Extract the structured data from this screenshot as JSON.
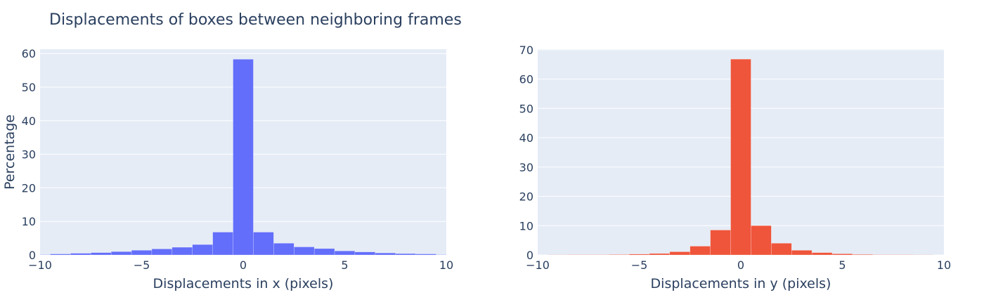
{
  "title": "Displacements of boxes between neighboring frames",
  "chart_data": [
    {
      "type": "histogram",
      "xlabel": "Displacements in x (pixels)",
      "ylabel": "Percentage",
      "color": "#636efa",
      "bins": [
        -10.5,
        -9.5,
        -8.5,
        -7.5,
        -6.5,
        -5.5,
        -4.5,
        -3.5,
        -2.5,
        -1.5,
        -0.5,
        0.5,
        1.5,
        2.5,
        3.5,
        4.5,
        5.5,
        6.5,
        7.5,
        8.5,
        9.5,
        10.5
      ],
      "values": [
        0.1,
        0.3,
        0.5,
        0.7,
        1.0,
        1.4,
        1.8,
        2.3,
        3.1,
        6.8,
        58.3,
        6.8,
        3.5,
        2.4,
        1.9,
        1.2,
        0.9,
        0.6,
        0.4,
        0.3,
        0.1
      ],
      "xlim": [
        -10,
        10
      ],
      "ylim": [
        0,
        61.3
      ],
      "xticks": [
        {
          "value": -10,
          "label": "−10"
        },
        {
          "value": -5,
          "label": "−5"
        },
        0,
        5,
        10
      ],
      "yticks": [
        0,
        10,
        20,
        30,
        40,
        50,
        60
      ],
      "grid": true
    },
    {
      "type": "histogram",
      "xlabel": "Displacements in y (pixels)",
      "color": "#ef553b",
      "bins": [
        -10.5,
        -9.5,
        -8.5,
        -7.5,
        -6.5,
        -5.5,
        -4.5,
        -3.5,
        -2.5,
        -1.5,
        -0.5,
        0.5,
        1.5,
        2.5,
        3.5,
        4.5,
        5.5,
        6.5,
        7.5,
        8.5,
        9.5,
        10.5
      ],
      "values": [
        0,
        0.05,
        0.1,
        0.1,
        0.15,
        0.3,
        0.5,
        1.1,
        3.0,
        8.5,
        66.8,
        10.0,
        4.0,
        1.6,
        0.8,
        0.4,
        0.2,
        0.1,
        0.1,
        0.05,
        0
      ],
      "xlim": [
        -10,
        10
      ],
      "ylim": [
        0,
        70.2
      ],
      "xticks": [
        {
          "value": -10,
          "label": "−10"
        },
        {
          "value": -5,
          "label": "−5"
        },
        0,
        5,
        10
      ],
      "yticks": [
        0,
        10,
        20,
        30,
        40,
        50,
        60,
        70
      ],
      "grid": true
    }
  ]
}
